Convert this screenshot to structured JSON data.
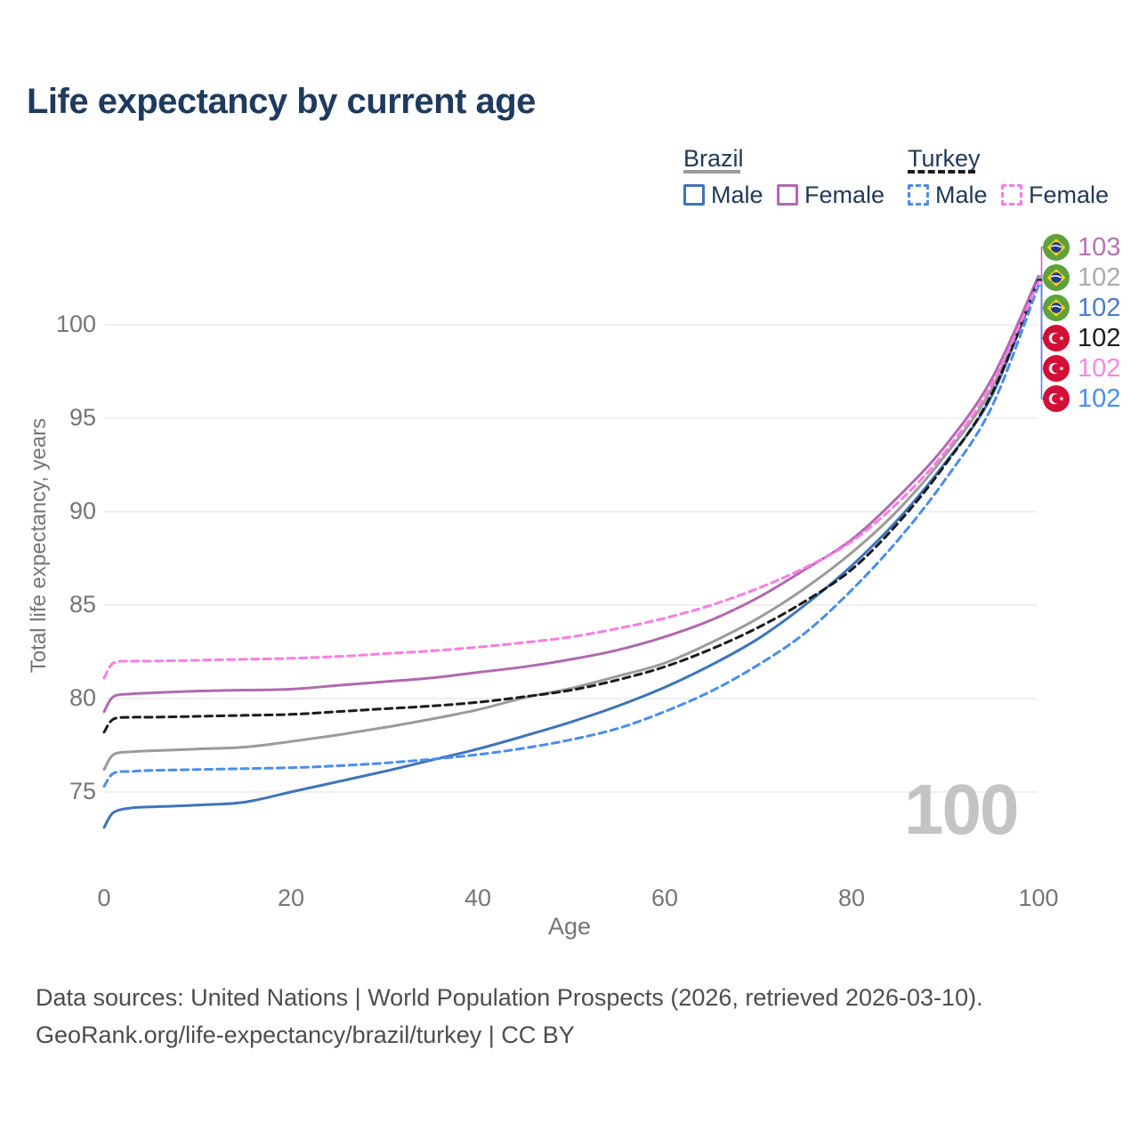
{
  "page": {
    "background": "#ffffff"
  },
  "chart_data": {
    "type": "line",
    "title": "Life expectancy by current age",
    "xlabel": "Age",
    "ylabel": "Total life expectancy, years",
    "watermark": "100",
    "x_ticks": [
      0,
      20,
      40,
      60,
      80,
      100
    ],
    "y_ticks": [
      75,
      80,
      85,
      90,
      95,
      100
    ],
    "xlim": [
      0,
      100
    ],
    "ylim": [
      73,
      103.5
    ],
    "grid": "horizontal",
    "legend_position": "top-right",
    "x": [
      0,
      1,
      3,
      5,
      10,
      15,
      20,
      25,
      30,
      35,
      40,
      45,
      50,
      55,
      60,
      65,
      70,
      75,
      80,
      85,
      90,
      95,
      100
    ],
    "series": [
      {
        "name": "Brazil Total",
        "country": "Brazil",
        "sex": "Both",
        "style": "solid",
        "color": "#9b9b9b",
        "values": [
          76.2,
          77.0,
          77.15,
          77.2,
          77.3,
          77.4,
          77.7,
          78.05,
          78.45,
          78.9,
          79.4,
          80.05,
          80.55,
          81.2,
          81.9,
          83.0,
          84.3,
          85.9,
          87.8,
          90.1,
          93.0,
          96.6,
          102.5
        ]
      },
      {
        "name": "Brazil Female",
        "country": "Brazil",
        "sex": "Female",
        "style": "solid",
        "color": "#b069af",
        "values": [
          79.3,
          80.1,
          80.25,
          80.3,
          80.4,
          80.45,
          80.5,
          80.7,
          80.9,
          81.1,
          81.4,
          81.7,
          82.1,
          82.6,
          83.3,
          84.2,
          85.4,
          86.9,
          88.5,
          90.8,
          93.5,
          97.1,
          102.6
        ]
      },
      {
        "name": "Brazil Male",
        "country": "Brazil",
        "sex": "Male",
        "style": "solid",
        "color": "#3e74bb",
        "values": [
          73.1,
          73.9,
          74.15,
          74.2,
          74.3,
          74.45,
          75.0,
          75.55,
          76.1,
          76.7,
          77.3,
          78.0,
          78.75,
          79.6,
          80.6,
          81.8,
          83.2,
          85.0,
          87.1,
          89.6,
          92.6,
          96.2,
          102.45
        ]
      },
      {
        "name": "Turkey Total",
        "country": "Turkey",
        "sex": "Both",
        "style": "dashed",
        "color": "#1b1b1b",
        "values": [
          78.2,
          78.9,
          79.0,
          79.0,
          79.05,
          79.1,
          79.15,
          79.3,
          79.45,
          79.6,
          79.8,
          80.1,
          80.45,
          81.0,
          81.7,
          82.65,
          83.8,
          85.2,
          86.9,
          89.4,
          92.5,
          96.3,
          102.4
        ]
      },
      {
        "name": "Turkey Male",
        "country": "Turkey",
        "sex": "Male",
        "style": "dashed",
        "color": "#4a8cf0",
        "values": [
          75.3,
          76.0,
          76.1,
          76.15,
          76.2,
          76.25,
          76.3,
          76.4,
          76.55,
          76.75,
          77.0,
          77.35,
          77.8,
          78.4,
          79.3,
          80.4,
          81.8,
          83.5,
          85.8,
          88.5,
          91.7,
          95.6,
          102.1
        ]
      },
      {
        "name": "Turkey Female",
        "country": "Turkey",
        "sex": "Female",
        "style": "dashed",
        "color": "#fb7ce4",
        "values": [
          81.1,
          81.9,
          82.0,
          82.0,
          82.05,
          82.1,
          82.15,
          82.25,
          82.4,
          82.55,
          82.75,
          83.0,
          83.3,
          83.75,
          84.3,
          85.0,
          85.9,
          87.0,
          88.4,
          90.5,
          93.2,
          96.8,
          102.3
        ]
      }
    ]
  },
  "legend": {
    "groups": [
      {
        "label": "Brazil",
        "color": "#9b9b9b",
        "style": "solid"
      },
      {
        "label": "Turkey",
        "color": "#1b1b1b",
        "style": "dashed"
      }
    ],
    "items": [
      {
        "group": "Brazil",
        "label": "Male",
        "color": "#3e74bb",
        "style": "solid"
      },
      {
        "group": "Brazil",
        "label": "Female",
        "color": "#b069af",
        "style": "solid"
      },
      {
        "group": "Turkey",
        "label": "Male",
        "color": "#4a8cf0",
        "style": "dashed"
      },
      {
        "group": "Turkey",
        "label": "Female",
        "color": "#fb7ce4",
        "style": "dashed"
      }
    ]
  },
  "end_labels": [
    {
      "flag": "brazil",
      "value": "103",
      "color": "#b671b6",
      "series": "Brazil Female"
    },
    {
      "flag": "brazil",
      "value": "102",
      "color": "#ababab",
      "series": "Brazil Total"
    },
    {
      "flag": "brazil",
      "value": "102",
      "color": "#4a7dc9",
      "series": "Brazil Male"
    },
    {
      "flag": "turkey",
      "value": "102",
      "color": "#1b1b1b",
      "series": "Turkey Total"
    },
    {
      "flag": "turkey",
      "value": "102",
      "color": "#fb85e9",
      "series": "Turkey Female"
    },
    {
      "flag": "turkey",
      "value": "102",
      "color": "#4a8cf0",
      "series": "Turkey Male"
    }
  ],
  "icons": {
    "brazil_flag": {
      "green": "#5fa13c",
      "yellow": "#fdd216",
      "blue": "#1c3e94",
      "band": "#ffffff"
    },
    "turkey_flag": {
      "red": "#d20f34",
      "white": "#ffffff"
    }
  },
  "colors": {
    "title": "#1e3a5e",
    "legend_text": "#22395a",
    "axis_text": "#757575",
    "grid": "#ececec",
    "watermark": "#c4c4c4",
    "footer_text": "#4d4d4d"
  },
  "footer": {
    "line1": "Data sources: United Nations | World Population Prospects (2026, retrieved 2026-03-10).",
    "line2": "GeoRank.org/life-expectancy/brazil/turkey | CC BY"
  }
}
